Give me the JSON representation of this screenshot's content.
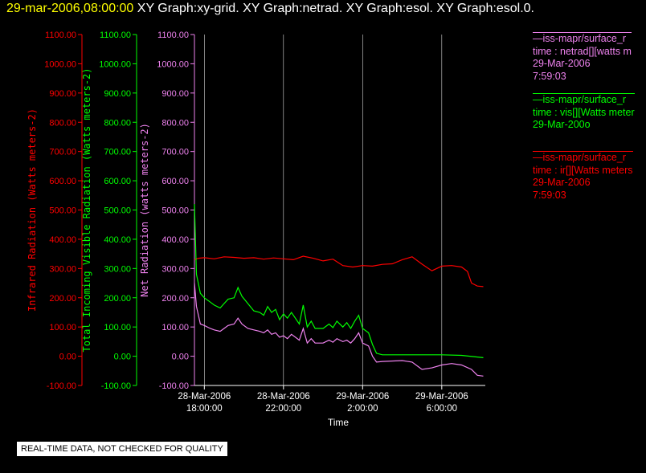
{
  "header": {
    "timestamp": "29-mar-2006,08:00:00",
    "graphs": "XY Graph:xy-grid.  XY Graph:netrad.  XY Graph:esol.  XY Graph:esol.0."
  },
  "legend": [
    {
      "line1": "—iss-mapr/surface_r",
      "line2": "time : netrad[][watts m",
      "line3": "29-Mar-2006",
      "line4": "7:59:03",
      "color": "#ee82ee"
    },
    {
      "line1": "—iss-mapr/surface_r",
      "line2": "time : vis[][Watts meter",
      "line3": "29-Mar-200o",
      "line4": "",
      "color": "#00ff00"
    },
    {
      "line1": "—iss-mapr/surface_r",
      "line2": "time : ir[][Watts meters",
      "line3": "29-Mar-2006",
      "line4": "7:59:03",
      "color": "#ff0000"
    }
  ],
  "notice": "REAL-TIME DATA, NOT CHECKED FOR QUALITY",
  "chart_data": {
    "type": "line",
    "xlabel": "Time",
    "x_ticks": [
      {
        "line1": "28-Mar-2006",
        "line2": "18:00:00",
        "hours": 0
      },
      {
        "line1": "28-Mar-2006",
        "line2": "22:00:00",
        "hours": 4
      },
      {
        "line1": "29-Mar-2006",
        "line2": "2:00:00",
        "hours": 8
      },
      {
        "line1": "29-Mar-2006",
        "line2": "6:00:00",
        "hours": 12
      }
    ],
    "x_range_hours": [
      -0.5,
      14.2
    ],
    "grid_x": true,
    "ylim": [
      -100,
      1100
    ],
    "y_ticks": [
      "-100.00",
      "0.00",
      "100.00",
      "200.00",
      "300.00",
      "400.00",
      "500.00",
      "600.00",
      "700.00",
      "800.00",
      "900.00",
      "1000.00",
      "1100.00"
    ],
    "axes": [
      {
        "label": "Infrared Radiation (Watts meters-2)",
        "color": "#ff0000"
      },
      {
        "label": "Total Incoming Visible Radiation (Watts meters-2)",
        "color": "#00ff00"
      },
      {
        "label": "Net Radiation (watts meters-2)",
        "color": "#ee82ee"
      }
    ],
    "series": [
      {
        "color": "#ff0000",
        "points": [
          [
            -0.5,
            330
          ],
          [
            -0.3,
            335
          ],
          [
            0,
            337
          ],
          [
            0.5,
            333
          ],
          [
            1,
            340
          ],
          [
            1.5,
            338
          ],
          [
            2,
            335
          ],
          [
            2.5,
            337
          ],
          [
            3,
            332
          ],
          [
            3.5,
            336
          ],
          [
            4,
            333
          ],
          [
            4.5,
            330
          ],
          [
            5,
            342
          ],
          [
            5.5,
            335
          ],
          [
            6,
            326
          ],
          [
            6.5,
            332
          ],
          [
            7,
            310
          ],
          [
            7.5,
            305
          ],
          [
            8,
            310
          ],
          [
            8.5,
            308
          ],
          [
            9,
            314
          ],
          [
            9.5,
            316
          ],
          [
            10,
            330
          ],
          [
            10.5,
            340
          ],
          [
            11,
            315
          ],
          [
            11.5,
            292
          ],
          [
            12,
            308
          ],
          [
            12.5,
            310
          ],
          [
            13,
            305
          ],
          [
            13.3,
            290
          ],
          [
            13.5,
            250
          ],
          [
            13.8,
            240
          ],
          [
            14.1,
            238
          ]
        ]
      },
      {
        "color": "#00ff00",
        "points": [
          [
            -0.5,
            520
          ],
          [
            -0.4,
            280
          ],
          [
            -0.2,
            215
          ],
          [
            0,
            200
          ],
          [
            0.3,
            185
          ],
          [
            0.5,
            175
          ],
          [
            0.8,
            165
          ],
          [
            1,
            180
          ],
          [
            1.2,
            195
          ],
          [
            1.5,
            200
          ],
          [
            1.7,
            235
          ],
          [
            1.9,
            205
          ],
          [
            2.2,
            180
          ],
          [
            2.5,
            155
          ],
          [
            2.8,
            150
          ],
          [
            3,
            140
          ],
          [
            3.2,
            170
          ],
          [
            3.4,
            150
          ],
          [
            3.6,
            160
          ],
          [
            3.8,
            125
          ],
          [
            4,
            145
          ],
          [
            4.2,
            130
          ],
          [
            4.4,
            150
          ],
          [
            4.6,
            130
          ],
          [
            4.8,
            110
          ],
          [
            5,
            175
          ],
          [
            5.2,
            100
          ],
          [
            5.4,
            120
          ],
          [
            5.6,
            95
          ],
          [
            6,
            95
          ],
          [
            6.3,
            110
          ],
          [
            6.5,
            98
          ],
          [
            6.7,
            120
          ],
          [
            7,
            100
          ],
          [
            7.2,
            115
          ],
          [
            7.4,
            95
          ],
          [
            7.6,
            120
          ],
          [
            7.8,
            140
          ],
          [
            8,
            95
          ],
          [
            8.3,
            80
          ],
          [
            8.5,
            40
          ],
          [
            8.7,
            10
          ],
          [
            9,
            5
          ],
          [
            10,
            5
          ],
          [
            11,
            5
          ],
          [
            12,
            5
          ],
          [
            13,
            3
          ],
          [
            14.1,
            -5
          ]
        ]
      },
      {
        "color": "#ee82ee",
        "points": [
          [
            -0.5,
            250
          ],
          [
            -0.4,
            170
          ],
          [
            -0.2,
            110
          ],
          [
            0,
            105
          ],
          [
            0.3,
            95
          ],
          [
            0.5,
            90
          ],
          [
            0.8,
            85
          ],
          [
            1,
            95
          ],
          [
            1.2,
            105
          ],
          [
            1.5,
            110
          ],
          [
            1.7,
            130
          ],
          [
            1.9,
            110
          ],
          [
            2.2,
            95
          ],
          [
            2.5,
            90
          ],
          [
            2.8,
            85
          ],
          [
            3,
            80
          ],
          [
            3.2,
            90
          ],
          [
            3.4,
            75
          ],
          [
            3.6,
            80
          ],
          [
            3.8,
            65
          ],
          [
            4,
            70
          ],
          [
            4.2,
            60
          ],
          [
            4.4,
            75
          ],
          [
            4.6,
            65
          ],
          [
            4.8,
            55
          ],
          [
            5,
            95
          ],
          [
            5.2,
            45
          ],
          [
            5.4,
            60
          ],
          [
            5.6,
            45
          ],
          [
            6,
            45
          ],
          [
            6.3,
            55
          ],
          [
            6.5,
            48
          ],
          [
            6.7,
            60
          ],
          [
            7,
            50
          ],
          [
            7.2,
            55
          ],
          [
            7.4,
            45
          ],
          [
            7.6,
            60
          ],
          [
            7.8,
            80
          ],
          [
            8,
            45
          ],
          [
            8.3,
            35
          ],
          [
            8.5,
            0
          ],
          [
            8.7,
            -20
          ],
          [
            9,
            -18
          ],
          [
            10,
            -15
          ],
          [
            10.5,
            -20
          ],
          [
            11,
            -45
          ],
          [
            11.5,
            -40
          ],
          [
            12,
            -30
          ],
          [
            12.5,
            -25
          ],
          [
            13,
            -30
          ],
          [
            13.5,
            -45
          ],
          [
            13.8,
            -65
          ],
          [
            14.1,
            -68
          ]
        ]
      }
    ]
  }
}
